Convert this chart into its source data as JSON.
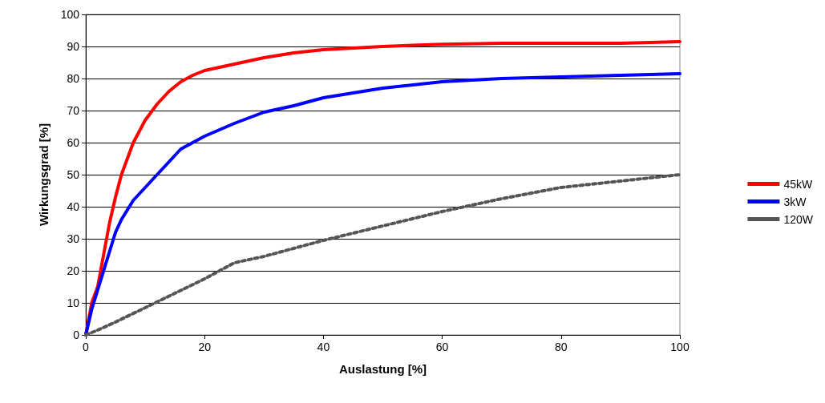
{
  "chart_data": {
    "type": "line",
    "xlabel": "Auslastung [%]",
    "ylabel": "Wirkungsgrad [%]",
    "xlim": [
      0,
      100
    ],
    "xticks": [
      0,
      20,
      40,
      60,
      80,
      100
    ],
    "ylim": [
      0,
      100
    ],
    "yticks": [
      0,
      10,
      20,
      30,
      40,
      50,
      60,
      70,
      80,
      90,
      100
    ],
    "grid": "y",
    "legend": "right",
    "marker": "none",
    "series": [
      {
        "name": "45kW",
        "color": "#ff0000",
        "x": [
          0,
          1,
          2,
          3,
          4,
          5,
          6,
          7,
          8,
          10,
          12,
          14,
          16,
          18,
          20,
          25,
          30,
          35,
          40,
          50,
          60,
          70,
          80,
          90,
          100
        ],
        "values": [
          0,
          10,
          15,
          25,
          35,
          43,
          50,
          55,
          60,
          67,
          72,
          76,
          79,
          81,
          82.5,
          84.5,
          86.5,
          88,
          89,
          90,
          90.7,
          91,
          91,
          91,
          91.5
        ]
      },
      {
        "name": "3kW",
        "color": "#0000ff",
        "x": [
          0,
          1,
          2,
          3,
          4,
          5,
          6,
          8,
          10,
          12,
          14,
          16,
          18,
          20,
          25,
          30,
          35,
          40,
          50,
          60,
          70,
          80,
          90,
          100
        ],
        "values": [
          0,
          8,
          14,
          20,
          26,
          32,
          36,
          42,
          46,
          50,
          54,
          58,
          60,
          62,
          66,
          69.5,
          71.5,
          74,
          77,
          79,
          80,
          80.5,
          81,
          81.5
        ]
      },
      {
        "name": "120W",
        "color": "#555555",
        "line_style": "dotted",
        "x": [
          0,
          2,
          5,
          10,
          15,
          20,
          25,
          30,
          35,
          40,
          50,
          60,
          70,
          80,
          90,
          100
        ],
        "values": [
          0,
          1.5,
          4,
          8.5,
          13,
          17.5,
          22.5,
          24.5,
          27,
          29.5,
          34,
          38.5,
          42.5,
          46,
          48,
          50
        ]
      }
    ]
  }
}
